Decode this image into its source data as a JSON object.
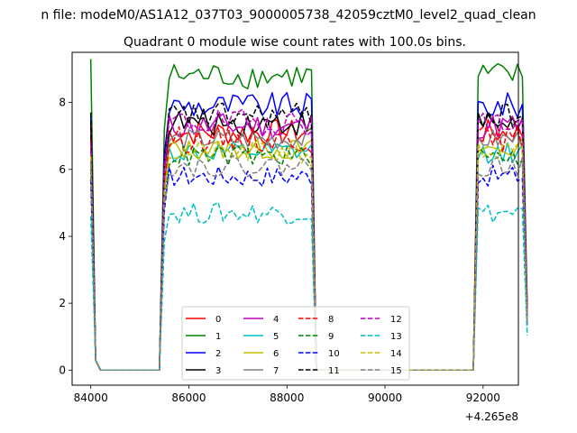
{
  "chart_data": {
    "type": "line",
    "suptitle": "n file: modeM0/AS1A12_037T03_9000005738_42059cztM0_level2_quad_clean",
    "title": "Quadrant 0 module wise count rates with 100.0s bins.",
    "xlabel": "",
    "ylabel": "",
    "x_offset_label": "+4.265e8",
    "xlim": [
      83620,
      92720
    ],
    "ylim": [
      -0.45,
      9.5
    ],
    "xticks": [
      84000,
      86000,
      88000,
      90000,
      92000
    ],
    "xtick_labels": [
      "84000",
      "86000",
      "88000",
      "90000",
      "92000"
    ],
    "yticks": [
      0,
      2,
      4,
      6,
      8
    ],
    "ytick_labels": [
      "0",
      "2",
      "4",
      "6",
      "8"
    ],
    "grid": false,
    "legend": {
      "placement": "lower center",
      "ncol": 4
    },
    "segments": {
      "t_start": 84000,
      "dt": 100,
      "n": 90,
      "plateau1": [
        15,
        45
      ],
      "gap": [
        46,
        76
      ],
      "plateau2": [
        79,
        89
      ]
    },
    "series": [
      {
        "name": "0",
        "color": "#ff0000",
        "dash": "solid",
        "level": 7.1,
        "noise": 0.25,
        "start": 7.0
      },
      {
        "name": "1",
        "color": "#008000",
        "dash": "solid",
        "level": 8.8,
        "noise": 0.25,
        "start": 9.3
      },
      {
        "name": "2",
        "color": "#0000ff",
        "dash": "solid",
        "level": 7.9,
        "noise": 0.25,
        "start": 7.7
      },
      {
        "name": "3",
        "color": "#000000",
        "dash": "solid",
        "level": 7.4,
        "noise": 0.25,
        "start": 7.4
      },
      {
        "name": "4",
        "color": "#bf00bf",
        "dash": "solid",
        "level": 7.3,
        "noise": 0.25,
        "start": 6.6
      },
      {
        "name": "5",
        "color": "#00bfbf",
        "dash": "solid",
        "level": 6.5,
        "noise": 0.2,
        "start": 6.6
      },
      {
        "name": "6",
        "color": "#bfbf00",
        "dash": "solid",
        "level": 6.6,
        "noise": 0.2,
        "start": 6.2
      },
      {
        "name": "7",
        "color": "#808080",
        "dash": "solid",
        "level": 6.9,
        "noise": 0.2,
        "start": 6.8
      },
      {
        "name": "8",
        "color": "#ff0000",
        "dash": "dashed",
        "level": 6.9,
        "noise": 0.25,
        "start": 7.3
      },
      {
        "name": "9",
        "color": "#008000",
        "dash": "dashed",
        "level": 6.4,
        "noise": 0.2,
        "start": 6.0
      },
      {
        "name": "10",
        "color": "#0000ff",
        "dash": "dashed",
        "level": 5.8,
        "noise": 0.2,
        "start": 5.7
      },
      {
        "name": "11",
        "color": "#000000",
        "dash": "dashed",
        "level": 7.6,
        "noise": 0.25,
        "start": 7.7
      },
      {
        "name": "12",
        "color": "#bf00bf",
        "dash": "dashed",
        "level": 7.4,
        "noise": 0.25,
        "start": 6.8
      },
      {
        "name": "13",
        "color": "#00bfbf",
        "dash": "dashed",
        "level": 4.7,
        "noise": 0.2,
        "start": 4.6
      },
      {
        "name": "14",
        "color": "#bfbf00",
        "dash": "dashed",
        "level": 6.5,
        "noise": 0.2,
        "start": 6.4
      },
      {
        "name": "15",
        "color": "#808080",
        "dash": "dashed",
        "level": 6.1,
        "noise": 0.2,
        "start": 6.2
      }
    ]
  }
}
